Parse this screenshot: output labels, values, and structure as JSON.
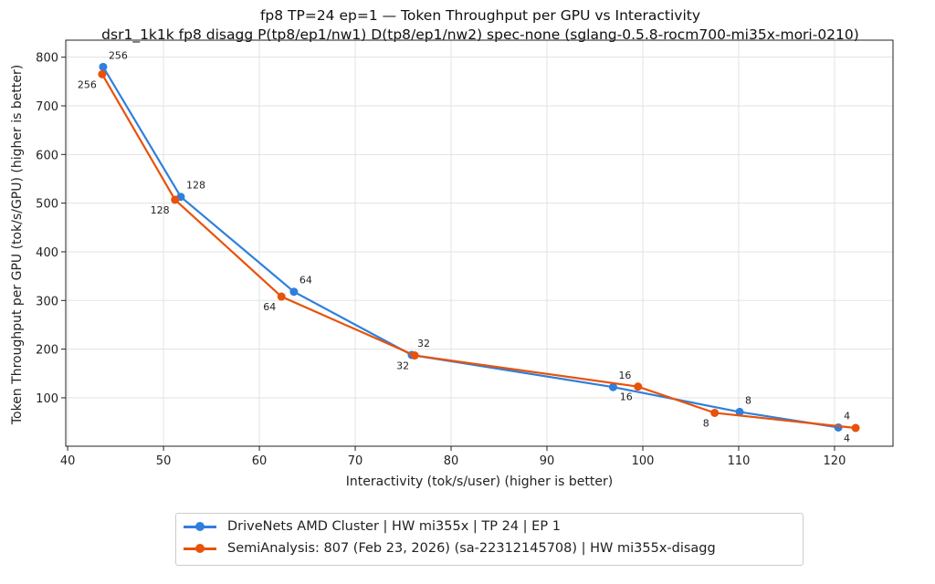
{
  "chart_data": {
    "type": "line",
    "title": "fp8 TP=24 ep=1 — Token Throughput per GPU vs Interactivity",
    "subtitle": "dsr1_1k1k fp8 disagg P(tp8/ep1/nw1) D(tp8/ep1/nw2) spec-none (sglang-0.5.8-rocm700-mi35x-mori-0210)",
    "xlabel": "Interactivity (tok/s/user) (higher is better)",
    "ylabel": "Token Throughput per GPU (tok/s/GPU) (higher is better)",
    "xlim": [
      39.8,
      126.1
    ],
    "ylim": [
      0.5,
      835
    ],
    "xticks": [
      40,
      50,
      60,
      70,
      80,
      90,
      100,
      110,
      120
    ],
    "yticks": [
      100,
      200,
      300,
      400,
      500,
      600,
      700,
      800
    ],
    "grid": true,
    "legend_placement": "bottom-center-outside",
    "series": [
      {
        "name": "DriveNets AMD Cluster | HW mi355x | TP 24 | EP 1",
        "color": "#2f7fdc",
        "x": [
          43.7,
          51.8,
          63.6,
          75.9,
          96.9,
          110.1,
          120.4
        ],
        "y": [
          780,
          513,
          318,
          188,
          122,
          71,
          39
        ],
        "labels": [
          "256",
          "128",
          "64",
          "32",
          "16",
          "8",
          "4"
        ]
      },
      {
        "name": "SemiAnalysis: 807 (Feb 23, 2026) (sa-22312145708) | HW mi355x-disagg",
        "color": "#e8520a",
        "x": [
          43.6,
          51.2,
          62.3,
          76.2,
          99.5,
          107.5,
          122.2
        ],
        "y": [
          765,
          507,
          308,
          187,
          123,
          69,
          38
        ],
        "labels": [
          "256",
          "128",
          "64",
          "32",
          "16",
          "8",
          "4"
        ]
      }
    ]
  }
}
